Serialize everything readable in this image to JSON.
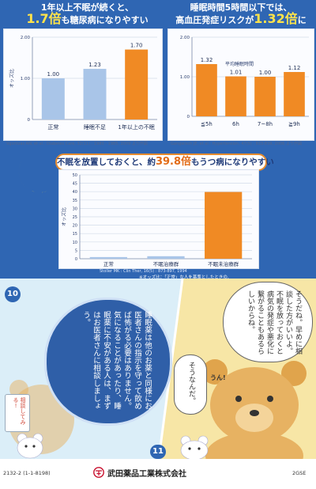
{
  "charts_section": {
    "chart1_banner_line1": "1年以上不眠が続くと、",
    "chart1_banner_big": "1.7倍",
    "chart1_banner_rest": "も糖尿病になりやすい",
    "chart1_ylabel": "オッズ比",
    "chart1_citation": "Vgontzas AN, et al.: Diabetes Care, 32(11) : 1980 - 1985, 2009 より作図",
    "chart2_banner_line1": "睡眠時間5時間以下では、",
    "chart2_banner_pre": "高血圧発症リスクが",
    "chart2_banner_big": "1.32倍",
    "chart2_banner_post": "に",
    "chart2_xlabel": "平均睡眠時間",
    "chart2_citation": "Gangwisch JE, et al.: Hypertension, 47(5) : 833-839, 2006 より作図",
    "chart3_title_pre": "不眠を放置しておくと、約",
    "chart3_title_big": "39.8倍",
    "chart3_title_post": "もうつ病になりやすい",
    "chart3_ylabel": "オッズ比",
    "chart3_citation": "Stoller MK : Clin Ther, 16(5) : 873-897, 1994",
    "chart3_note_line1": "※オッズ比：「正常」な人を基準としたときの、",
    "chart3_note_line2": "病気を発症するリスク"
  },
  "chart_data": [
    {
      "type": "bar",
      "categories": [
        "正常",
        "睡眠不足",
        "1年以上の不眠"
      ],
      "values": [
        1.0,
        1.23,
        1.7
      ],
      "data_labels": [
        "1.00",
        "1.23",
        "1.70"
      ],
      "colors": [
        "#a9c5e8",
        "#a9c5e8",
        "#f08a24"
      ],
      "ylabel": "オッズ比",
      "yticks": [
        "2.00",
        "1.00",
        "0"
      ],
      "ylim": [
        0,
        2
      ],
      "grid": true
    },
    {
      "type": "bar",
      "categories": [
        "≦5h",
        "6h",
        "7~8h",
        "≧9h"
      ],
      "values": [
        1.32,
        1.01,
        1.0,
        1.12
      ],
      "data_labels": [
        "1.32",
        "1.01",
        "1.00",
        "1.12"
      ],
      "colors": [
        "#f08a24",
        "#f08a24",
        "#f08a24",
        "#f08a24"
      ],
      "xlabel": "平均睡眠時間",
      "yticks": [
        "2.00",
        "1.00",
        "0"
      ],
      "ylim": [
        0,
        2
      ],
      "grid": true
    },
    {
      "type": "bar",
      "categories": [
        "正常",
        "不眠治療群",
        "不眠未治療群"
      ],
      "values": [
        1,
        1.5,
        39.8
      ],
      "colors": [
        "#a9c5e8",
        "#a9c5e8",
        "#f08a24"
      ],
      "ylabel": "オッズ比",
      "yticks": [
        "50",
        "45",
        "40",
        "35",
        "30",
        "25",
        "20",
        "15",
        "10",
        "5",
        "0"
      ],
      "ylim": [
        0,
        50
      ],
      "grid": true
    }
  ],
  "comic": {
    "panel_number_left": "10",
    "panel_number_right": "11",
    "bubble_doctor": "睡眠薬は他のお薬と同様にお医者さんの指示を守って飲めば怖がる必要はありません。気になることがあったり、睡眠薬に不安がある人は、まずはお医者さんに相談しましょう。",
    "bubble_right": "そうだね。早めに相談した方がいいよ。不眠を放っておくと病気の発症や悪化に繋がることもあるらしいからね。",
    "bubble_small": "そうなんだ。",
    "small_sign": "相談してみる!",
    "exclaim": "うん!"
  },
  "footer": {
    "code_left": "2132-2 (1-1-8198)",
    "company": "武田薬品工業株式会社",
    "code_right": "2GSE"
  }
}
